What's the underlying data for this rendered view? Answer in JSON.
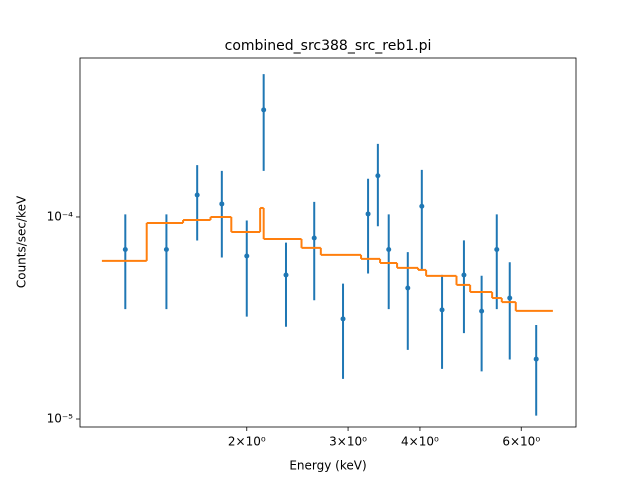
{
  "chart_data": {
    "type": "errorbar",
    "title": "combined_src388_src_reb1.pi",
    "xlabel": "Energy (keV)",
    "ylabel": "Counts/sec/keV",
    "xscale": "log",
    "yscale": "log",
    "xlim": [
      1.026,
      7.47
    ],
    "ylim": [
      9.13e-06,
      0.000612
    ],
    "xticks": [
      {
        "value": 2,
        "label": "2×10⁰"
      },
      {
        "value": 3,
        "label": "3×10⁰"
      },
      {
        "value": 4,
        "label": "4×10⁰"
      },
      {
        "value": 6,
        "label": "6×10⁰"
      }
    ],
    "yticks": [
      {
        "value": 1e-05,
        "label": "10⁻⁵"
      },
      {
        "value": 0.0001,
        "label": "10⁻⁴"
      }
    ],
    "series": [
      {
        "type": "errorbar",
        "color": "#1f77b4",
        "x": [
          1.23,
          1.45,
          1.64,
          1.81,
          2.0,
          2.14,
          2.34,
          2.62,
          2.94,
          3.25,
          3.38,
          3.53,
          3.81,
          4.03,
          4.37,
          4.77,
          5.12,
          5.44,
          5.73,
          6.37
        ],
        "values": [
          6.9e-05,
          6.9e-05,
          0.0001285,
          0.000116,
          6.41e-05,
          0.000339,
          5.16e-05,
          7.87e-05,
          3.13e-05,
          0.0001035,
          0.00016,
          6.9e-05,
          4.45e-05,
          0.000113,
          3.47e-05,
          5.16e-05,
          3.42e-05,
          6.9e-05,
          3.97e-05,
          1.98e-05
        ],
        "errors": [
          3.4e-05,
          3.4e-05,
          5.2e-05,
          5.3e-05,
          3.2e-05,
          0.00017,
          2.3e-05,
          4e-05,
          1.55e-05,
          5.1e-05,
          7e-05,
          3.4e-05,
          2.25e-05,
          5.8e-05,
          1.7e-05,
          2.5e-05,
          1.7e-05,
          3.4e-05,
          2e-05,
          9.4e-06
        ]
      },
      {
        "type": "step",
        "color": "#ff7f0e",
        "bins": [
          1.12,
          1.34,
          1.55,
          1.73,
          1.88,
          2.11,
          2.14,
          2.49,
          2.69,
          3.16,
          3.41,
          3.65,
          3.97,
          4.1,
          4.63,
          4.89,
          5.34,
          5.55,
          5.87,
          6.81
        ],
        "values": [
          6.06e-05,
          9.34e-05,
          9.66e-05,
          0.0001,
          8.43e-05,
          0.0001108,
          7.78e-05,
          7.03e-05,
          6.49e-05,
          6.2e-05,
          5.92e-05,
          5.6e-05,
          5.47e-05,
          5.11e-05,
          4.61e-05,
          4.25e-05,
          3.97e-05,
          3.79e-05,
          3.43e-05
        ]
      }
    ]
  }
}
